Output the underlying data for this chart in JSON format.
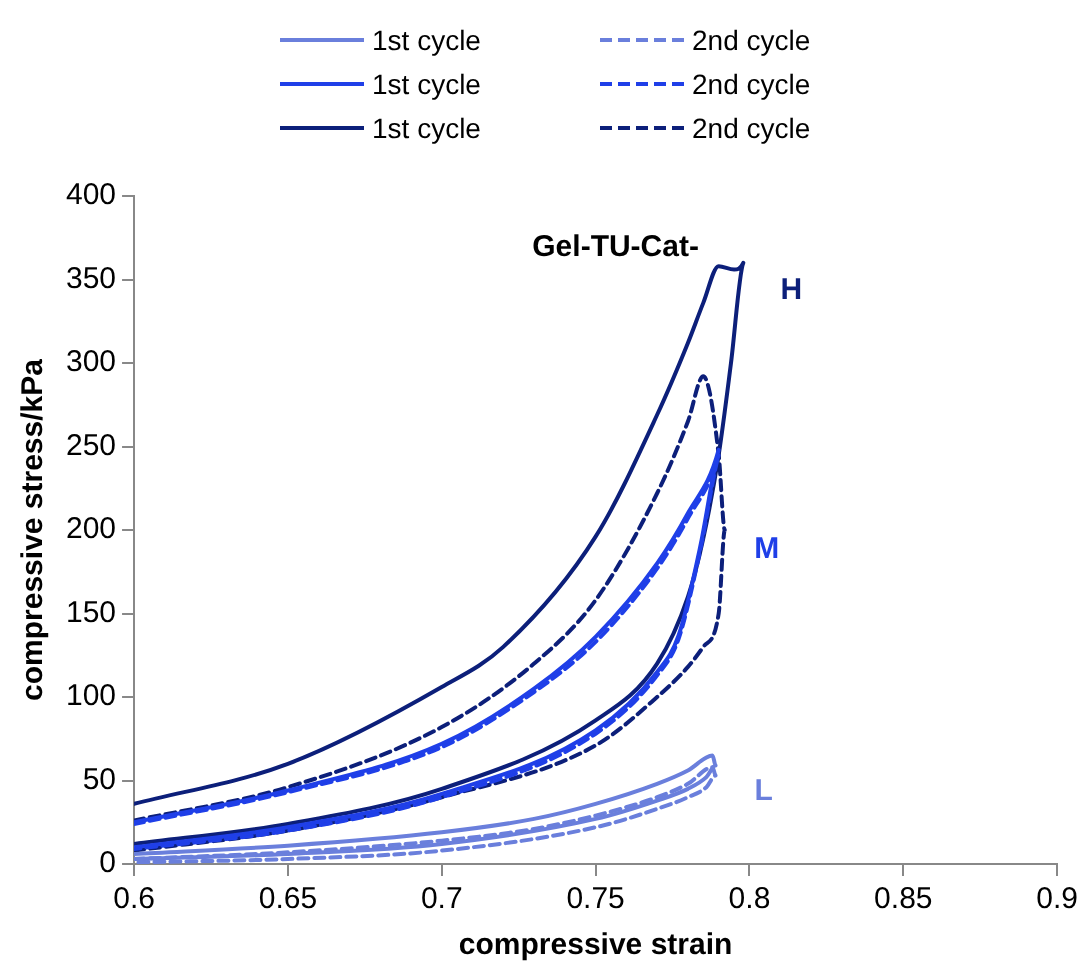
{
  "chart_data": {
    "type": "line",
    "xlabel": "compressive strain",
    "ylabel": "compressive stress/kPa",
    "xlim": [
      0.6,
      0.9
    ],
    "xticks": [
      0.6,
      0.65,
      0.7,
      0.75,
      0.8,
      0.85,
      0.9
    ],
    "ylim": [
      0,
      400
    ],
    "yticks": [
      0,
      50,
      100,
      150,
      200,
      250,
      300,
      350,
      400
    ],
    "grid": false,
    "legend": "top",
    "marker": "none",
    "series": [
      {
        "name": "1st cycle",
        "color": "#6a7fdc",
        "line_style": "solid",
        "x": [
          0.6,
          0.65,
          0.7,
          0.73,
          0.75,
          0.77,
          0.78,
          0.788,
          0.789,
          0.786,
          0.78,
          0.77,
          0.75,
          0.7,
          0.65,
          0.6
        ],
        "values": [
          6,
          11,
          19,
          27,
          36,
          48,
          56,
          65,
          59,
          52,
          45,
          38,
          27,
          12,
          6,
          3
        ]
      },
      {
        "name": "2nd cycle",
        "color": "#6a7fdc",
        "line_style": "dashed",
        "x": [
          0.6,
          0.65,
          0.7,
          0.73,
          0.75,
          0.77,
          0.78,
          0.788,
          0.789,
          0.786,
          0.78,
          0.77,
          0.75,
          0.7,
          0.65,
          0.6
        ],
        "values": [
          3,
          7,
          14,
          21,
          29,
          40,
          48,
          58,
          53,
          46,
          40,
          33,
          22,
          8,
          3,
          1
        ]
      },
      {
        "name": "1st cycle",
        "color": "#1f3fe8",
        "line_style": "solid",
        "x": [
          0.6,
          0.65,
          0.7,
          0.73,
          0.75,
          0.77,
          0.78,
          0.79,
          0.784,
          0.777,
          0.77,
          0.75,
          0.7,
          0.65,
          0.6
        ],
        "values": [
          25,
          44,
          72,
          105,
          136,
          180,
          210,
          248,
          190,
          137,
          115,
          80,
          42,
          22,
          10
        ]
      },
      {
        "name": "2nd cycle",
        "color": "#1f3fe8",
        "line_style": "dashed",
        "x": [
          0.6,
          0.65,
          0.7,
          0.73,
          0.75,
          0.77,
          0.78,
          0.79,
          0.784,
          0.777,
          0.77,
          0.75,
          0.7,
          0.65,
          0.6
        ],
        "values": [
          24,
          43,
          70,
          103,
          133,
          177,
          207,
          245,
          188,
          135,
          113,
          78,
          40,
          20,
          9
        ]
      },
      {
        "name": "1st cycle",
        "color": "#0c1f7a",
        "line_style": "solid",
        "x": [
          0.6,
          0.65,
          0.7,
          0.72,
          0.75,
          0.77,
          0.78,
          0.785,
          0.79,
          0.795,
          0.798,
          0.794,
          0.79,
          0.785,
          0.78,
          0.77,
          0.75,
          0.7,
          0.65,
          0.6
        ],
        "values": [
          36,
          60,
          106,
          130,
          196,
          269,
          312,
          336,
          358,
          356,
          360,
          300,
          245,
          195,
          160,
          120,
          86,
          45,
          24,
          12
        ]
      },
      {
        "name": "2nd cycle",
        "color": "#0c1f7a",
        "line_style": "dashed",
        "x": [
          0.6,
          0.65,
          0.7,
          0.73,
          0.75,
          0.77,
          0.78,
          0.785,
          0.79,
          0.792,
          0.79,
          0.785,
          0.78,
          0.77,
          0.75,
          0.7,
          0.65,
          0.6
        ],
        "values": [
          26,
          46,
          82,
          120,
          158,
          222,
          265,
          292,
          245,
          200,
          150,
          130,
          118,
          100,
          71,
          40,
          20,
          8
        ]
      }
    ],
    "annotations": [
      "Gel-TU-Cat-",
      "H",
      "M",
      "L"
    ]
  }
}
